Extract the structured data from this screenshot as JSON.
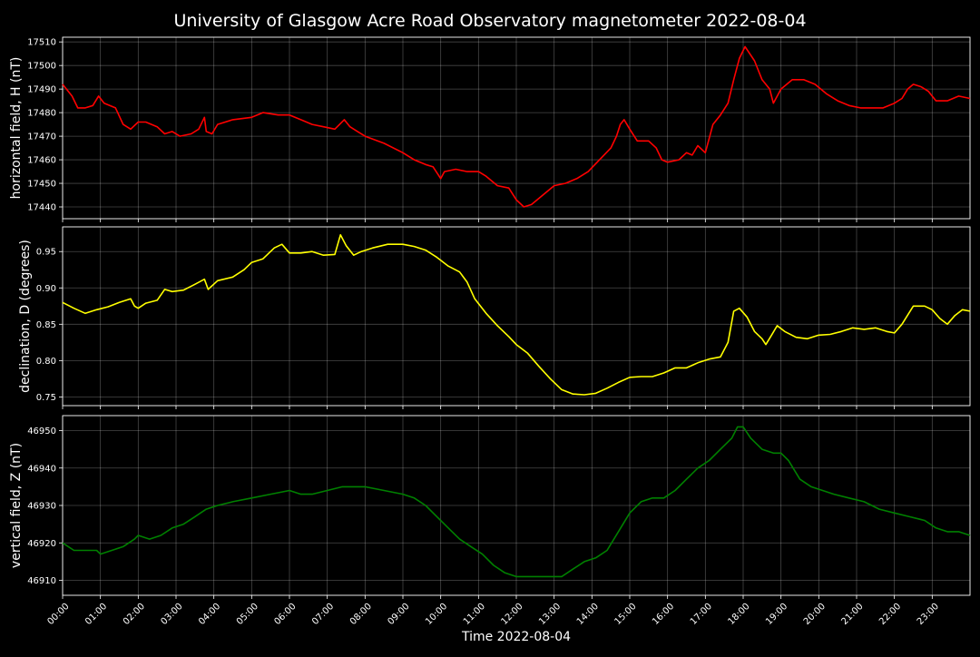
{
  "title": "University of Glasgow Acre Road Observatory magnetometer 2022-08-04",
  "xlabel": "Time 2022-08-04",
  "chart_data": {
    "type": "line",
    "title": "University of Glasgow Acre Road Observatory magnetometer 2022-08-04",
    "xlabel": "Time 2022-08-04",
    "x_unit": "hours",
    "xlim": [
      0,
      24
    ],
    "x_ticks": [
      "00:00",
      "01:00",
      "02:00",
      "03:00",
      "04:00",
      "05:00",
      "06:00",
      "07:00",
      "08:00",
      "09:00",
      "10:00",
      "11:00",
      "12:00",
      "13:00",
      "14:00",
      "15:00",
      "16:00",
      "17:00",
      "18:00",
      "19:00",
      "20:00",
      "21:00",
      "22:00",
      "23:00"
    ],
    "grid": true,
    "panels": [
      {
        "ylabel": "horizontal field, H (nT)",
        "color": "#ff0000",
        "ylim": [
          17435,
          17512
        ],
        "y_ticks": [
          17440,
          17450,
          17460,
          17470,
          17480,
          17490,
          17500,
          17510
        ],
        "points": [
          [
            0,
            17492
          ],
          [
            0.25,
            17487
          ],
          [
            0.4,
            17482
          ],
          [
            0.6,
            17482
          ],
          [
            0.8,
            17483
          ],
          [
            0.95,
            17487
          ],
          [
            1.1,
            17484
          ],
          [
            1.4,
            17482
          ],
          [
            1.6,
            17475
          ],
          [
            1.8,
            17473
          ],
          [
            2.0,
            17476
          ],
          [
            2.2,
            17476
          ],
          [
            2.5,
            17474
          ],
          [
            2.7,
            17471
          ],
          [
            2.9,
            17472
          ],
          [
            3.1,
            17470
          ],
          [
            3.4,
            17471
          ],
          [
            3.6,
            17473
          ],
          [
            3.75,
            17478
          ],
          [
            3.8,
            17472
          ],
          [
            3.95,
            17471
          ],
          [
            4.1,
            17475
          ],
          [
            4.5,
            17477
          ],
          [
            5.0,
            17478
          ],
          [
            5.3,
            17480
          ],
          [
            5.7,
            17479
          ],
          [
            6.0,
            17479
          ],
          [
            6.3,
            17477
          ],
          [
            6.6,
            17475
          ],
          [
            6.9,
            17474
          ],
          [
            7.2,
            17473
          ],
          [
            7.45,
            17477
          ],
          [
            7.6,
            17474
          ],
          [
            7.8,
            17472
          ],
          [
            8.0,
            17470
          ],
          [
            8.5,
            17467
          ],
          [
            9.0,
            17463
          ],
          [
            9.3,
            17460
          ],
          [
            9.6,
            17458
          ],
          [
            9.8,
            17457
          ],
          [
            10.0,
            17452
          ],
          [
            10.1,
            17455
          ],
          [
            10.4,
            17456
          ],
          [
            10.7,
            17455
          ],
          [
            11.0,
            17455
          ],
          [
            11.2,
            17453
          ],
          [
            11.5,
            17449
          ],
          [
            11.8,
            17448
          ],
          [
            12.0,
            17443
          ],
          [
            12.2,
            17440
          ],
          [
            12.4,
            17441
          ],
          [
            12.7,
            17445
          ],
          [
            13.0,
            17449
          ],
          [
            13.3,
            17450
          ],
          [
            13.6,
            17452
          ],
          [
            13.9,
            17455
          ],
          [
            14.2,
            17460
          ],
          [
            14.5,
            17465
          ],
          [
            14.65,
            17470
          ],
          [
            14.75,
            17475
          ],
          [
            14.85,
            17477
          ],
          [
            15.0,
            17473
          ],
          [
            15.2,
            17468
          ],
          [
            15.5,
            17468
          ],
          [
            15.7,
            17465
          ],
          [
            15.85,
            17460
          ],
          [
            16.0,
            17459
          ],
          [
            16.3,
            17460
          ],
          [
            16.5,
            17463
          ],
          [
            16.65,
            17462
          ],
          [
            16.8,
            17466
          ],
          [
            17.0,
            17463
          ],
          [
            17.2,
            17475
          ],
          [
            17.4,
            17479
          ],
          [
            17.6,
            17484
          ],
          [
            17.75,
            17494
          ],
          [
            17.9,
            17503
          ],
          [
            18.05,
            17508
          ],
          [
            18.3,
            17502
          ],
          [
            18.5,
            17494
          ],
          [
            18.7,
            17490
          ],
          [
            18.8,
            17484
          ],
          [
            19.0,
            17490
          ],
          [
            19.3,
            17494
          ],
          [
            19.6,
            17494
          ],
          [
            19.9,
            17492
          ],
          [
            20.2,
            17488
          ],
          [
            20.5,
            17485
          ],
          [
            20.8,
            17483
          ],
          [
            21.1,
            17482
          ],
          [
            21.4,
            17482
          ],
          [
            21.7,
            17482
          ],
          [
            22.0,
            17484
          ],
          [
            22.2,
            17486
          ],
          [
            22.35,
            17490
          ],
          [
            22.5,
            17492
          ],
          [
            22.7,
            17491
          ],
          [
            22.9,
            17489
          ],
          [
            23.1,
            17485
          ],
          [
            23.4,
            17485
          ],
          [
            23.7,
            17487
          ],
          [
            24.0,
            17486
          ]
        ]
      },
      {
        "ylabel": "declination, D (degrees)",
        "color": "#ffff00",
        "ylim": [
          0.738,
          0.984
        ],
        "y_ticks": [
          0.75,
          0.8,
          0.85,
          0.9,
          0.95
        ],
        "y_tick_labels": [
          "0.75",
          "0.80",
          "0.85",
          "0.90",
          "0.95"
        ],
        "points": [
          [
            0,
            0.88
          ],
          [
            0.3,
            0.872
          ],
          [
            0.6,
            0.865
          ],
          [
            0.9,
            0.87
          ],
          [
            1.2,
            0.874
          ],
          [
            1.5,
            0.88
          ],
          [
            1.8,
            0.885
          ],
          [
            1.9,
            0.875
          ],
          [
            2.0,
            0.872
          ],
          [
            2.2,
            0.879
          ],
          [
            2.5,
            0.883
          ],
          [
            2.7,
            0.898
          ],
          [
            2.9,
            0.895
          ],
          [
            3.2,
            0.897
          ],
          [
            3.5,
            0.905
          ],
          [
            3.75,
            0.912
          ],
          [
            3.85,
            0.898
          ],
          [
            4.1,
            0.91
          ],
          [
            4.5,
            0.915
          ],
          [
            4.8,
            0.925
          ],
          [
            5.0,
            0.935
          ],
          [
            5.3,
            0.94
          ],
          [
            5.6,
            0.955
          ],
          [
            5.8,
            0.96
          ],
          [
            6.0,
            0.948
          ],
          [
            6.3,
            0.948
          ],
          [
            6.6,
            0.95
          ],
          [
            6.9,
            0.945
          ],
          [
            7.2,
            0.946
          ],
          [
            7.35,
            0.973
          ],
          [
            7.5,
            0.958
          ],
          [
            7.7,
            0.945
          ],
          [
            7.9,
            0.95
          ],
          [
            8.2,
            0.955
          ],
          [
            8.6,
            0.96
          ],
          [
            9.0,
            0.96
          ],
          [
            9.3,
            0.957
          ],
          [
            9.6,
            0.952
          ],
          [
            9.9,
            0.942
          ],
          [
            10.2,
            0.93
          ],
          [
            10.5,
            0.922
          ],
          [
            10.7,
            0.908
          ],
          [
            10.9,
            0.885
          ],
          [
            11.2,
            0.865
          ],
          [
            11.5,
            0.848
          ],
          [
            11.8,
            0.833
          ],
          [
            12.0,
            0.822
          ],
          [
            12.3,
            0.81
          ],
          [
            12.6,
            0.792
          ],
          [
            12.9,
            0.775
          ],
          [
            13.2,
            0.76
          ],
          [
            13.5,
            0.754
          ],
          [
            13.8,
            0.753
          ],
          [
            14.1,
            0.755
          ],
          [
            14.4,
            0.762
          ],
          [
            14.7,
            0.77
          ],
          [
            15.0,
            0.777
          ],
          [
            15.3,
            0.778
          ],
          [
            15.6,
            0.778
          ],
          [
            15.9,
            0.783
          ],
          [
            16.2,
            0.79
          ],
          [
            16.5,
            0.79
          ],
          [
            16.8,
            0.797
          ],
          [
            17.1,
            0.802
          ],
          [
            17.4,
            0.805
          ],
          [
            17.6,
            0.825
          ],
          [
            17.75,
            0.868
          ],
          [
            17.9,
            0.872
          ],
          [
            18.1,
            0.86
          ],
          [
            18.3,
            0.84
          ],
          [
            18.5,
            0.83
          ],
          [
            18.6,
            0.822
          ],
          [
            18.75,
            0.835
          ],
          [
            18.9,
            0.848
          ],
          [
            19.1,
            0.84
          ],
          [
            19.4,
            0.832
          ],
          [
            19.7,
            0.83
          ],
          [
            20.0,
            0.835
          ],
          [
            20.3,
            0.836
          ],
          [
            20.6,
            0.84
          ],
          [
            20.9,
            0.845
          ],
          [
            21.2,
            0.843
          ],
          [
            21.5,
            0.845
          ],
          [
            21.8,
            0.84
          ],
          [
            22.0,
            0.838
          ],
          [
            22.2,
            0.85
          ],
          [
            22.5,
            0.875
          ],
          [
            22.8,
            0.875
          ],
          [
            23.0,
            0.87
          ],
          [
            23.2,
            0.858
          ],
          [
            23.4,
            0.85
          ],
          [
            23.6,
            0.862
          ],
          [
            23.8,
            0.87
          ],
          [
            24.0,
            0.868
          ]
        ]
      },
      {
        "ylabel": "vertical field, Z (nT)",
        "color": "#008000",
        "ylim": [
          46906,
          46954
        ],
        "y_ticks": [
          46910,
          46920,
          46930,
          46940,
          46950
        ],
        "points": [
          [
            0,
            46920
          ],
          [
            0.3,
            46918
          ],
          [
            0.6,
            46918
          ],
          [
            0.9,
            46918
          ],
          [
            1.0,
            46917
          ],
          [
            1.3,
            46918
          ],
          [
            1.6,
            46919
          ],
          [
            1.9,
            46921
          ],
          [
            2.0,
            46922
          ],
          [
            2.3,
            46921
          ],
          [
            2.6,
            46922
          ],
          [
            2.9,
            46924
          ],
          [
            3.2,
            46925
          ],
          [
            3.5,
            46927
          ],
          [
            3.8,
            46929
          ],
          [
            4.1,
            46930
          ],
          [
            4.5,
            46931
          ],
          [
            5.0,
            46932
          ],
          [
            5.5,
            46933
          ],
          [
            6.0,
            46934
          ],
          [
            6.3,
            46933
          ],
          [
            6.6,
            46933
          ],
          [
            7.0,
            46934
          ],
          [
            7.4,
            46935
          ],
          [
            7.7,
            46935
          ],
          [
            8.0,
            46935
          ],
          [
            8.5,
            46934
          ],
          [
            9.0,
            46933
          ],
          [
            9.3,
            46932
          ],
          [
            9.6,
            46930
          ],
          [
            9.9,
            46927
          ],
          [
            10.2,
            46924
          ],
          [
            10.5,
            46921
          ],
          [
            10.8,
            46919
          ],
          [
            11.1,
            46917
          ],
          [
            11.4,
            46914
          ],
          [
            11.7,
            46912
          ],
          [
            12.0,
            46911
          ],
          [
            12.3,
            46911
          ],
          [
            12.6,
            46911
          ],
          [
            12.9,
            46911
          ],
          [
            13.2,
            46911
          ],
          [
            13.5,
            46913
          ],
          [
            13.8,
            46915
          ],
          [
            14.1,
            46916
          ],
          [
            14.4,
            46918
          ],
          [
            14.7,
            46923
          ],
          [
            15.0,
            46928
          ],
          [
            15.3,
            46931
          ],
          [
            15.6,
            46932
          ],
          [
            15.9,
            46932
          ],
          [
            16.2,
            46934
          ],
          [
            16.5,
            46937
          ],
          [
            16.8,
            46940
          ],
          [
            17.1,
            46942
          ],
          [
            17.4,
            46945
          ],
          [
            17.7,
            46948
          ],
          [
            17.85,
            46951
          ],
          [
            18.0,
            46951
          ],
          [
            18.2,
            46948
          ],
          [
            18.5,
            46945
          ],
          [
            18.8,
            46944
          ],
          [
            19.0,
            46944
          ],
          [
            19.2,
            46942
          ],
          [
            19.5,
            46937
          ],
          [
            19.8,
            46935
          ],
          [
            20.1,
            46934
          ],
          [
            20.4,
            46933
          ],
          [
            20.8,
            46932
          ],
          [
            21.2,
            46931
          ],
          [
            21.6,
            46929
          ],
          [
            22.0,
            46928
          ],
          [
            22.4,
            46927
          ],
          [
            22.8,
            46926
          ],
          [
            23.1,
            46924
          ],
          [
            23.4,
            46923
          ],
          [
            23.7,
            46923
          ],
          [
            24.0,
            46922
          ]
        ]
      }
    ]
  }
}
